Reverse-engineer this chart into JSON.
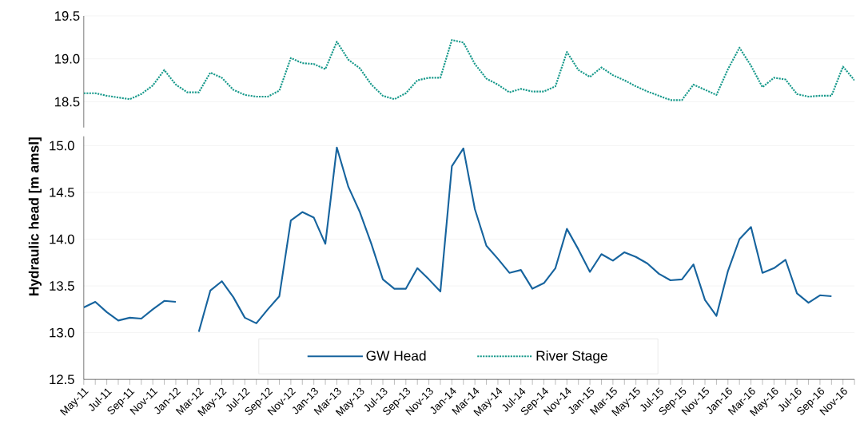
{
  "chart_data": [
    {
      "type": "line",
      "categories": [
        null,
        null,
        null,
        null,
        null,
        null,
        null,
        null,
        null,
        null,
        null,
        null,
        null,
        null,
        null,
        null,
        null,
        null,
        null,
        null,
        null,
        null,
        null,
        null,
        null,
        null,
        null,
        null,
        null,
        null,
        null,
        null,
        null,
        null,
        null,
        null,
        null,
        null,
        null,
        null,
        null,
        null,
        null,
        null,
        null,
        null,
        null,
        null,
        null,
        null,
        null,
        null,
        null,
        null,
        null,
        null,
        null,
        null,
        null,
        null,
        null,
        null,
        null,
        null,
        null,
        null,
        null,
        null
      ],
      "series": [
        {
          "name": "River Stage",
          "color": "#17998b",
          "line_style": "dotted",
          "values": [
            18.6,
            18.6,
            18.57,
            18.55,
            18.53,
            18.59,
            18.69,
            18.87,
            18.7,
            18.61,
            18.61,
            18.84,
            18.78,
            18.64,
            18.58,
            18.56,
            18.56,
            18.63,
            19.01,
            18.95,
            18.94,
            18.88,
            19.2,
            18.99,
            18.89,
            18.7,
            18.57,
            18.53,
            18.6,
            18.75,
            18.78,
            18.78,
            19.22,
            19.19,
            18.94,
            18.77,
            18.7,
            18.61,
            18.65,
            18.62,
            18.62,
            18.68,
            19.08,
            18.87,
            18.79,
            18.9,
            18.81,
            18.75,
            18.68,
            18.62,
            18.57,
            18.52,
            18.52,
            18.7,
            18.64,
            18.58,
            18.88,
            19.13,
            18.92,
            18.67,
            18.78,
            18.76,
            18.59,
            18.56,
            18.57,
            18.57,
            18.91,
            18.75
          ]
        }
      ],
      "ylim": [
        18.2,
        19.5
      ],
      "yticks": [
        {
          "value": 18.5,
          "label": "18.5"
        },
        {
          "value": 19,
          "label": "19.0"
        },
        {
          "value": 19.5,
          "label": "19.5"
        }
      ],
      "grid": "y",
      "tick_labels": "y"
    },
    {
      "type": "line",
      "ylabel": "Hydraulic head [m amsl]",
      "categories": [
        "May-11",
        null,
        "Jul-11",
        null,
        "Sep-11",
        null,
        "Nov-11",
        null,
        "Jan-12",
        null,
        "Mar-12",
        null,
        "May-12",
        null,
        "Jul-12",
        null,
        "Sep-12",
        null,
        "Nov-12",
        null,
        "Jan-13",
        null,
        "Mar-13",
        null,
        "May-13",
        null,
        "Jul-13",
        null,
        "Sep-13",
        null,
        "Nov-13",
        null,
        "Jan-14",
        null,
        "Mar-14",
        null,
        "May-14",
        null,
        "Jul-14",
        null,
        "Sep-14",
        null,
        "Nov-14",
        null,
        "Jan-15",
        null,
        "Mar-15",
        null,
        "May-15",
        null,
        "Jul-15",
        null,
        "Sep-15",
        null,
        "Nov-15",
        null,
        "Jan-16",
        null,
        "Mar-16",
        null,
        "May-16",
        null,
        "Jul-16",
        null,
        "Sep-16",
        null,
        "Nov-16",
        null
      ],
      "series": [
        {
          "name": "GW Head",
          "color": "#17649e",
          "line_style": "solid",
          "values": [
            13.27,
            13.33,
            13.22,
            13.13,
            13.16,
            13.15,
            13.25,
            13.34,
            13.33,
            null,
            13.01,
            13.45,
            13.55,
            13.38,
            13.16,
            13.1,
            13.25,
            13.39,
            14.2,
            14.29,
            14.23,
            13.95,
            14.98,
            14.56,
            14.29,
            13.95,
            13.57,
            13.47,
            13.47,
            13.69,
            13.57,
            13.44,
            14.78,
            14.97,
            14.32,
            13.93,
            13.79,
            13.64,
            13.67,
            13.47,
            13.53,
            13.69,
            14.11,
            13.89,
            13.65,
            13.84,
            13.77,
            13.86,
            13.81,
            13.74,
            13.63,
            13.56,
            13.57,
            13.73,
            13.35,
            13.18,
            13.66,
            14.0,
            14.13,
            13.64,
            13.69,
            13.78,
            13.42,
            13.32,
            13.4,
            13.39,
            null,
            null
          ]
        }
      ],
      "ylim": [
        12.5,
        15.1
      ],
      "yticks": [
        {
          "value": 12.5,
          "label": "12.5"
        },
        {
          "value": 13,
          "label": "13.0"
        },
        {
          "value": 13.5,
          "label": "13.5"
        },
        {
          "value": 14,
          "label": "14.0"
        },
        {
          "value": 14.5,
          "label": "14.5"
        },
        {
          "value": 15,
          "label": "15.0"
        }
      ],
      "grid": "y",
      "legend": "bottom"
    }
  ]
}
